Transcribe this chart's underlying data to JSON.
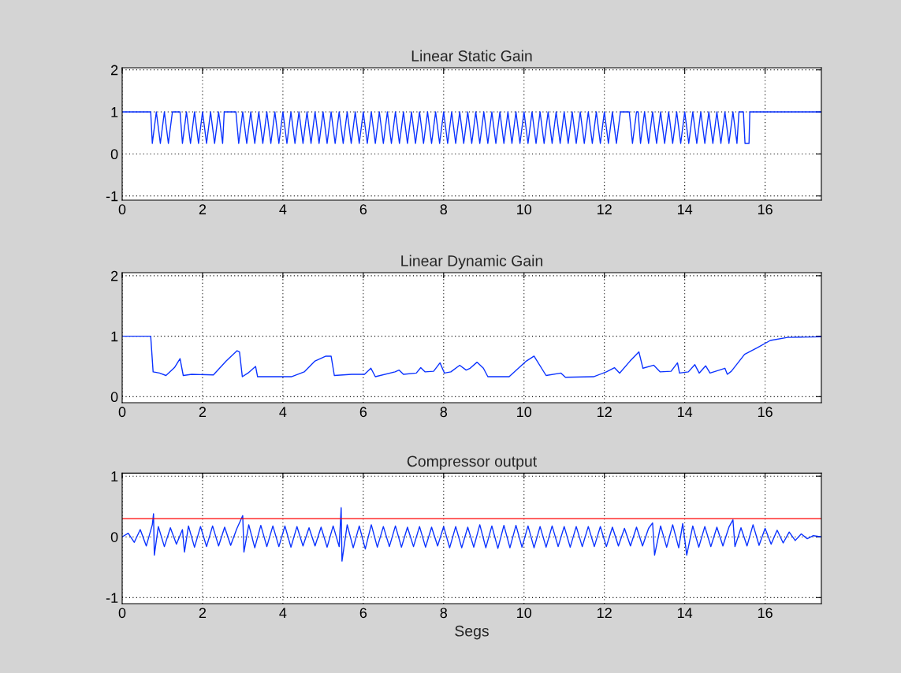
{
  "chart_data": [
    {
      "type": "line",
      "title": "Linear Static Gain",
      "xlim": [
        0,
        17.4
      ],
      "xticks": [
        0,
        2,
        4,
        6,
        8,
        10,
        12,
        14,
        16
      ],
      "ylim": [
        -1.1,
        2.05
      ],
      "yticks": [
        -1,
        0,
        1,
        2
      ],
      "grid": true,
      "line_style": "solid",
      "series": [
        {
          "color": "#0a32ff",
          "x": [
            0,
            0.71,
            0.75,
            0.85,
            0.95,
            1.05,
            1.15,
            1.25,
            1.28,
            1.44,
            1.5,
            1.6,
            1.7,
            1.8,
            1.9,
            2.0,
            2.1,
            2.2,
            2.3,
            2.4,
            2.5,
            2.54,
            2.83,
            2.9,
            3.0,
            3.1,
            3.2,
            3.3,
            3.4,
            3.5,
            3.6,
            3.7,
            3.8,
            3.9,
            4.0,
            4.1,
            4.2,
            4.3,
            4.4,
            4.5,
            4.6,
            4.7,
            4.8,
            4.9,
            5.0,
            5.1,
            5.2,
            5.3,
            5.4,
            5.5,
            5.6,
            5.7,
            5.8,
            5.9,
            6.0,
            6.1,
            6.2,
            6.3,
            6.4,
            6.5,
            6.6,
            6.7,
            6.8,
            6.9,
            7.0,
            7.1,
            7.2,
            7.3,
            7.4,
            7.5,
            7.6,
            7.7,
            7.8,
            7.9,
            8.0,
            8.1,
            8.2,
            8.3,
            8.4,
            8.5,
            8.6,
            8.7,
            8.8,
            8.9,
            9.0,
            9.1,
            9.2,
            9.3,
            9.4,
            9.5,
            9.6,
            9.7,
            9.8,
            9.9,
            10.0,
            10.1,
            10.2,
            10.3,
            10.4,
            10.5,
            10.6,
            10.7,
            10.8,
            10.9,
            11.0,
            11.1,
            11.2,
            11.3,
            11.4,
            11.5,
            11.6,
            11.7,
            11.8,
            11.9,
            12.0,
            12.1,
            12.2,
            12.3,
            12.4,
            12.48,
            12.62,
            12.7,
            12.8,
            12.84,
            12.9,
            13.0,
            13.1,
            13.2,
            13.3,
            13.4,
            13.5,
            13.6,
            13.7,
            13.8,
            13.9,
            14.0,
            14.1,
            14.2,
            14.3,
            14.4,
            14.5,
            14.6,
            14.7,
            14.8,
            14.9,
            15.0,
            15.1,
            15.2,
            15.3,
            15.35,
            15.46,
            15.5,
            15.6,
            15.62,
            17.4
          ],
          "values": [
            1,
            1,
            0.25,
            1,
            0.25,
            1,
            0.25,
            1,
            1,
            1,
            0.25,
            1,
            0.25,
            1,
            0.25,
            1,
            0.25,
            1,
            0.25,
            1,
            0.25,
            1,
            1,
            0.25,
            1,
            0.25,
            1,
            0.25,
            1,
            0.25,
            1,
            0.25,
            1,
            0.25,
            1,
            0.25,
            1,
            0.25,
            1,
            0.25,
            1,
            0.25,
            1,
            0.25,
            1,
            0.25,
            1,
            0.25,
            1,
            0.25,
            1,
            0.25,
            1,
            0.25,
            1,
            0.25,
            1,
            0.25,
            1,
            0.25,
            1,
            0.25,
            1,
            0.25,
            1,
            0.25,
            1,
            0.25,
            1,
            0.25,
            1,
            0.25,
            1,
            0.25,
            1,
            0.25,
            1,
            0.25,
            1,
            0.25,
            1,
            0.25,
            1,
            0.25,
            1,
            0.25,
            1,
            0.25,
            1,
            0.25,
            1,
            0.25,
            1,
            0.25,
            1,
            0.25,
            1,
            0.25,
            1,
            0.25,
            1,
            0.25,
            1,
            0.25,
            1,
            0.25,
            1,
            0.25,
            1,
            0.25,
            1,
            0.25,
            1,
            0.25,
            1,
            0.25,
            1,
            0.25,
            1,
            1,
            1,
            0.25,
            1,
            1,
            0.25,
            1,
            0.25,
            1,
            0.25,
            1,
            0.25,
            1,
            0.25,
            1,
            0.25,
            1,
            0.25,
            1,
            0.25,
            1,
            0.25,
            1,
            0.25,
            1,
            0.25,
            1,
            0.25,
            1,
            0.25,
            1,
            1,
            0.25,
            0.25,
            1,
            1
          ]
        }
      ]
    },
    {
      "type": "line",
      "title": "Linear Dynamic Gain",
      "xlim": [
        0,
        17.4
      ],
      "xticks": [
        0,
        2,
        4,
        6,
        8,
        10,
        12,
        14,
        16
      ],
      "ylim": [
        -0.1,
        2.05
      ],
      "yticks": [
        0,
        1,
        2
      ],
      "grid": true,
      "line_style": "solid",
      "series": [
        {
          "color": "#0a32ff",
          "x": [
            0,
            0.71,
            0.77,
            0.93,
            1.09,
            1.3,
            1.44,
            1.52,
            1.73,
            2.27,
            2.59,
            2.86,
            2.92,
            2.99,
            3.13,
            3.32,
            3.37,
            3.67,
            4.21,
            4.53,
            4.8,
            5.07,
            5.2,
            5.28,
            5.71,
            6.03,
            6.19,
            6.3,
            6.79,
            6.89,
            7.0,
            7.32,
            7.43,
            7.54,
            7.75,
            7.91,
            8.02,
            8.18,
            8.4,
            8.56,
            8.66,
            8.83,
            8.99,
            9.1,
            9.63,
            10.06,
            10.25,
            10.55,
            10.92,
            11.03,
            11.73,
            12.05,
            12.25,
            12.38,
            12.64,
            12.86,
            12.96,
            13.23,
            13.39,
            13.66,
            13.82,
            13.87,
            14.09,
            14.25,
            14.36,
            14.52,
            14.63,
            15.0,
            15.06,
            15.16,
            15.49,
            15.81,
            16.13,
            16.56,
            17.4
          ],
          "values": [
            1.0,
            1.0,
            0.41,
            0.39,
            0.35,
            0.48,
            0.63,
            0.35,
            0.37,
            0.36,
            0.59,
            0.76,
            0.74,
            0.33,
            0.39,
            0.5,
            0.33,
            0.33,
            0.33,
            0.41,
            0.59,
            0.67,
            0.67,
            0.35,
            0.37,
            0.37,
            0.47,
            0.33,
            0.41,
            0.44,
            0.37,
            0.39,
            0.48,
            0.41,
            0.42,
            0.56,
            0.39,
            0.41,
            0.52,
            0.44,
            0.47,
            0.57,
            0.47,
            0.33,
            0.33,
            0.59,
            0.67,
            0.35,
            0.39,
            0.32,
            0.33,
            0.41,
            0.48,
            0.39,
            0.59,
            0.74,
            0.47,
            0.52,
            0.41,
            0.42,
            0.56,
            0.39,
            0.41,
            0.53,
            0.39,
            0.51,
            0.39,
            0.47,
            0.37,
            0.42,
            0.7,
            0.81,
            0.93,
            0.98,
            0.99
          ]
        }
      ]
    },
    {
      "type": "line",
      "title": "Compressor output",
      "xlabel": "Segs",
      "xlim": [
        0,
        17.4
      ],
      "xticks": [
        0,
        2,
        4,
        6,
        8,
        10,
        12,
        14,
        16
      ],
      "ylim": [
        -1.1,
        1.05
      ],
      "yticks": [
        -1,
        0,
        1
      ],
      "grid": true,
      "line_style": "solid",
      "ref_lines": [
        {
          "axis": "y",
          "value": 0.3,
          "color": "#ff0000",
          "line_style": "solid"
        }
      ],
      "series": [
        {
          "color": "#0a32ff",
          "x": [
            0,
            0.15,
            0.3,
            0.45,
            0.6,
            0.75,
            0.78,
            0.8,
            0.9,
            1.05,
            1.2,
            1.35,
            1.5,
            1.55,
            1.65,
            1.8,
            1.95,
            2.1,
            2.25,
            2.4,
            2.55,
            2.7,
            2.85,
            3.0,
            3.03,
            3.15,
            3.3,
            3.45,
            3.6,
            3.75,
            3.9,
            4.05,
            4.2,
            4.35,
            4.5,
            4.65,
            4.8,
            4.95,
            5.1,
            5.25,
            5.4,
            5.45,
            5.47,
            5.6,
            5.75,
            5.9,
            6.05,
            6.2,
            6.35,
            6.5,
            6.65,
            6.8,
            6.95,
            7.1,
            7.25,
            7.4,
            7.55,
            7.7,
            7.85,
            8.0,
            8.15,
            8.3,
            8.45,
            8.6,
            8.75,
            8.9,
            9.05,
            9.2,
            9.35,
            9.5,
            9.65,
            9.8,
            9.95,
            10.1,
            10.25,
            10.4,
            10.55,
            10.7,
            10.85,
            11.0,
            11.15,
            11.3,
            11.45,
            11.6,
            11.75,
            11.9,
            12.05,
            12.2,
            12.35,
            12.5,
            12.65,
            12.8,
            12.95,
            13.1,
            13.2,
            13.25,
            13.4,
            13.55,
            13.7,
            13.85,
            13.95,
            14.05,
            14.2,
            14.35,
            14.5,
            14.65,
            14.8,
            14.95,
            15.1,
            15.2,
            15.25,
            15.4,
            15.55,
            15.7,
            15.85,
            16.0,
            16.15,
            16.3,
            16.45,
            16.6,
            16.75,
            16.9,
            17.05,
            17.2,
            17.4
          ],
          "values": [
            0,
            0.06,
            -0.09,
            0.12,
            -0.15,
            0.2,
            0.38,
            -0.3,
            0.17,
            -0.16,
            0.15,
            -0.12,
            0.12,
            -0.25,
            0.18,
            -0.17,
            0.17,
            -0.16,
            0.18,
            -0.15,
            0.16,
            -0.14,
            0.13,
            0.35,
            -0.25,
            0.2,
            -0.18,
            0.19,
            -0.16,
            0.18,
            -0.16,
            0.18,
            -0.17,
            0.17,
            -0.15,
            0.15,
            -0.15,
            0.16,
            -0.17,
            0.18,
            -0.16,
            0.48,
            -0.4,
            0.2,
            -0.18,
            0.18,
            -0.2,
            0.2,
            -0.17,
            0.17,
            -0.16,
            0.18,
            -0.17,
            0.16,
            -0.16,
            0.17,
            -0.17,
            0.16,
            -0.15,
            0.17,
            -0.18,
            0.17,
            -0.18,
            0.16,
            -0.17,
            0.2,
            -0.18,
            0.18,
            -0.19,
            0.19,
            -0.18,
            0.19,
            -0.17,
            0.18,
            -0.18,
            0.17,
            -0.17,
            0.18,
            -0.16,
            0.17,
            -0.17,
            0.17,
            -0.16,
            0.17,
            -0.16,
            0.17,
            -0.16,
            0.16,
            -0.15,
            0.14,
            -0.15,
            0.16,
            -0.15,
            0.14,
            0.23,
            -0.3,
            0.18,
            -0.17,
            0.2,
            -0.18,
            0.22,
            -0.3,
            0.18,
            -0.17,
            0.17,
            -0.16,
            0.16,
            -0.15,
            0.16,
            0.28,
            -0.16,
            0.15,
            -0.15,
            0.2,
            -0.14,
            0.14,
            -0.12,
            0.11,
            -0.1,
            0.08,
            -0.06,
            0.05,
            -0.03,
            0.02,
            0
          ]
        }
      ]
    }
  ]
}
